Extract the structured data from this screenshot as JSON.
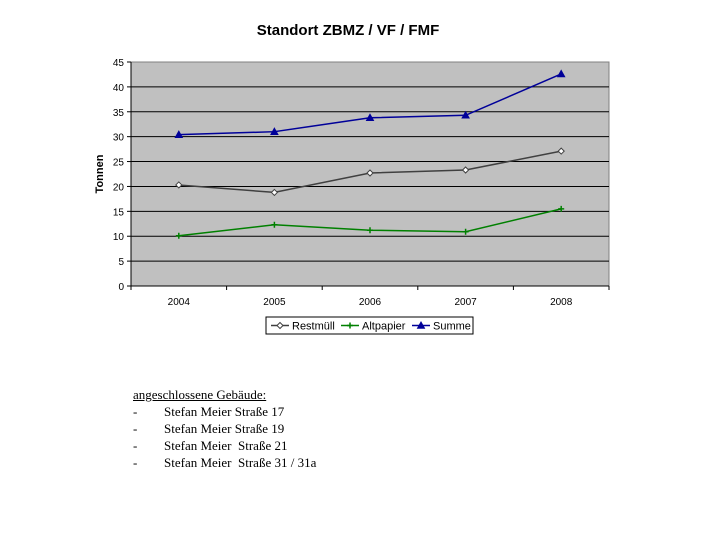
{
  "chart_data": {
    "type": "line",
    "title": "Standort ZBMZ / VF / FMF",
    "ylabel": "Tonnen",
    "xlabel": "",
    "categories": [
      "2004",
      "2005",
      "2006",
      "2007",
      "2008"
    ],
    "ylim": [
      0,
      45
    ],
    "yticks": [
      "0",
      "5",
      "10",
      "15",
      "20",
      "25",
      "30",
      "35",
      "40",
      "45"
    ],
    "grid": true,
    "legend": "bottom",
    "series": [
      {
        "name": "Restmüll",
        "values": [
          20.3,
          18.8,
          22.7,
          23.3,
          27.1
        ],
        "color": "#404040",
        "marker": "diamond"
      },
      {
        "name": "Altpapier",
        "values": [
          10.1,
          12.3,
          11.2,
          10.9,
          15.5
        ],
        "color": "#008000",
        "marker": "star"
      },
      {
        "name": "Summe",
        "values": [
          30.4,
          31.0,
          33.8,
          34.3,
          42.6
        ],
        "color": "#000099",
        "marker": "triangle"
      }
    ],
    "plot_background": "#c0c0c0"
  },
  "notes": {
    "heading": "angeschlossene Gebäude:",
    "items": [
      {
        "dash": "-",
        "text": "Stefan Meier Straße 17"
      },
      {
        "dash": "-",
        "text": "Stefan Meier Straße 19"
      },
      {
        "dash": "-",
        "text": "Stefan Meier  Straße 21"
      },
      {
        "dash": "-",
        "text": "Stefan Meier  Straße 31 / 31a"
      }
    ]
  }
}
